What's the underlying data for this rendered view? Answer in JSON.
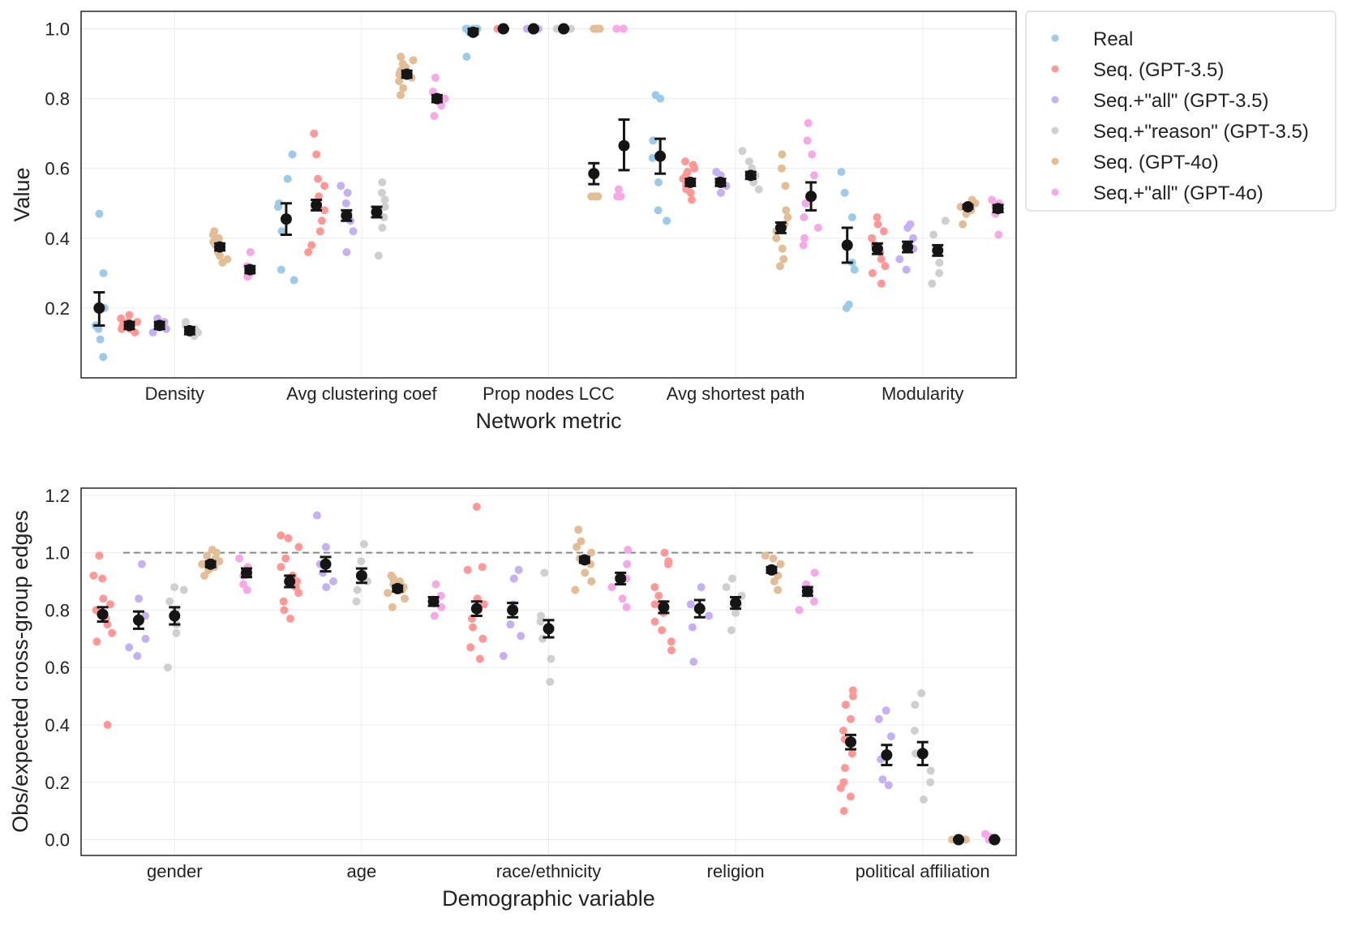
{
  "colors": {
    "Real": "#9ecae9",
    "Seq. (GPT-3.5)": "#ff9896",
    "Seq.+\"all\" (GPT-3.5)": "#c5b0f2",
    "Seq.+\"reason\" (GPT-3.5)": "#cfcfcf",
    "Seq. (GPT-4o)": "#e2bd95",
    "Seq.+\"all\" (GPT-4o)": "#f7a8e6",
    "mean_marker": "#151515",
    "reference_line": "#888888"
  },
  "legend": {
    "location": "outside upper right",
    "entries": [
      "Real",
      "Seq. (GPT-3.5)",
      "Seq.+\"all\" (GPT-3.5)",
      "Seq.+\"reason\" (GPT-3.5)",
      "Seq. (GPT-4o)",
      "Seq.+\"all\" (GPT-4o)"
    ]
  },
  "chart_data": [
    {
      "type": "scatter",
      "kind": "strip plot with mean and 95% CI error bars",
      "xlabel": "Network metric",
      "ylabel": "Value",
      "categories": [
        "Density",
        "Avg clustering coef",
        "Prop nodes LCC",
        "Avg shortest path",
        "Modularity"
      ],
      "yticks": [
        "0.2",
        "0.4",
        "0.6",
        "0.8",
        "1.0"
      ],
      "ylim": [
        0.0,
        1.05
      ],
      "grid": true,
      "series": [
        {
          "name": "Real",
          "means": [
            0.2,
            0.455,
            0.99,
            0.635,
            0.38
          ],
          "ci": [
            [
              0.15,
              0.245
            ],
            [
              0.41,
              0.5
            ],
            [
              0.985,
              1.0
            ],
            [
              0.585,
              0.685
            ],
            [
              0.33,
              0.43
            ]
          ],
          "points": [
            [
              0.06,
              0.11,
              0.14,
              0.15,
              0.2,
              0.3,
              0.47
            ],
            [
              0.28,
              0.31,
              0.42,
              0.49,
              0.5,
              0.57,
              0.64
            ],
            [
              0.92,
              0.99,
              1.0,
              1.0,
              1.0,
              1.0,
              1.0
            ],
            [
              0.45,
              0.48,
              0.56,
              0.63,
              0.68,
              0.8,
              0.81
            ],
            [
              0.2,
              0.21,
              0.31,
              0.33,
              0.46,
              0.53,
              0.59
            ]
          ]
        },
        {
          "name": "Seq. (GPT-3.5)",
          "means": [
            0.15,
            0.495,
            1.0,
            0.56,
            0.37
          ],
          "ci": [
            [
              0.14,
              0.16
            ],
            [
              0.48,
              0.51
            ],
            [
              1.0,
              1.0
            ],
            [
              0.55,
              0.57
            ],
            [
              0.355,
              0.385
            ]
          ],
          "points": [
            [
              0.13,
              0.14,
              0.14,
              0.15,
              0.15,
              0.16,
              0.16,
              0.17,
              0.18
            ],
            [
              0.36,
              0.38,
              0.42,
              0.45,
              0.48,
              0.5,
              0.52,
              0.55,
              0.57,
              0.64,
              0.7
            ],
            [
              1.0,
              1.0,
              1.0,
              1.0,
              1.0,
              1.0
            ],
            [
              0.51,
              0.53,
              0.54,
              0.55,
              0.56,
              0.57,
              0.58,
              0.59,
              0.6,
              0.61,
              0.62
            ],
            [
              0.27,
              0.3,
              0.32,
              0.34,
              0.36,
              0.38,
              0.4,
              0.42,
              0.44,
              0.46
            ]
          ]
        },
        {
          "name": "Seq.+\"all\" (GPT-3.5)",
          "means": [
            0.15,
            0.465,
            1.0,
            0.56,
            0.375
          ],
          "ci": [
            [
              0.14,
              0.16
            ],
            [
              0.45,
              0.48
            ],
            [
              1.0,
              1.0
            ],
            [
              0.55,
              0.57
            ],
            [
              0.36,
              0.39
            ]
          ],
          "points": [
            [
              0.13,
              0.14,
              0.15,
              0.16,
              0.17
            ],
            [
              0.36,
              0.42,
              0.45,
              0.47,
              0.5,
              0.53,
              0.55
            ],
            [
              1.0,
              1.0,
              1.0,
              1.0
            ],
            [
              0.53,
              0.55,
              0.56,
              0.58,
              0.59
            ],
            [
              0.31,
              0.34,
              0.37,
              0.4,
              0.43,
              0.44
            ]
          ]
        },
        {
          "name": "Seq.+\"reason\" (GPT-3.5)",
          "means": [
            0.135,
            0.475,
            1.0,
            0.58,
            0.365
          ],
          "ci": [
            [
              0.125,
              0.145
            ],
            [
              0.46,
              0.49
            ],
            [
              1.0,
              1.0
            ],
            [
              0.57,
              0.59
            ],
            [
              0.35,
              0.38
            ]
          ],
          "points": [
            [
              0.12,
              0.13,
              0.14,
              0.15,
              0.16
            ],
            [
              0.35,
              0.43,
              0.46,
              0.49,
              0.51,
              0.53,
              0.56
            ],
            [
              1.0,
              1.0,
              1.0,
              1.0
            ],
            [
              0.54,
              0.56,
              0.58,
              0.6,
              0.62,
              0.65
            ],
            [
              0.27,
              0.3,
              0.33,
              0.37,
              0.41,
              0.45
            ]
          ]
        },
        {
          "name": "Seq. (GPT-4o)",
          "means": [
            0.375,
            0.87,
            0.585,
            0.43,
            0.49
          ],
          "ci": [
            [
              0.365,
              0.385
            ],
            [
              0.86,
              0.88
            ],
            [
              0.555,
              0.615
            ],
            [
              0.415,
              0.445
            ],
            [
              0.485,
              0.495
            ]
          ],
          "points": [
            [
              0.33,
              0.34,
              0.35,
              0.36,
              0.37,
              0.38,
              0.39,
              0.4,
              0.41,
              0.42
            ],
            [
              0.81,
              0.83,
              0.85,
              0.86,
              0.87,
              0.88,
              0.89,
              0.9,
              0.91,
              0.92
            ],
            [
              0.52,
              0.52,
              0.52,
              0.52,
              1.0,
              1.0,
              1.0,
              1.0
            ],
            [
              0.32,
              0.34,
              0.37,
              0.4,
              0.42,
              0.44,
              0.46,
              0.48,
              0.55,
              0.6,
              0.64
            ],
            [
              0.44,
              0.47,
              0.48,
              0.49,
              0.5,
              0.51
            ]
          ]
        },
        {
          "name": "Seq.+\"all\" (GPT-4o)",
          "means": [
            0.31,
            0.8,
            0.665,
            0.52,
            0.485
          ],
          "ci": [
            [
              0.3,
              0.32
            ],
            [
              0.79,
              0.81
            ],
            [
              0.595,
              0.74
            ],
            [
              0.48,
              0.56
            ],
            [
              0.475,
              0.495
            ]
          ],
          "points": [
            [
              0.29,
              0.3,
              0.31,
              0.32,
              0.36
            ],
            [
              0.75,
              0.78,
              0.8,
              0.82,
              0.86
            ],
            [
              0.52,
              0.52,
              0.54,
              1.0,
              1.0,
              1.0
            ],
            [
              0.38,
              0.4,
              0.43,
              0.46,
              0.5,
              0.58,
              0.64,
              0.68,
              0.73
            ],
            [
              0.41,
              0.47,
              0.49,
              0.5,
              0.51
            ]
          ]
        }
      ]
    },
    {
      "type": "scatter",
      "kind": "strip plot with mean and 95% CI error bars",
      "xlabel": "Demographic variable",
      "ylabel": "Obs/expected cross-group edges",
      "categories": [
        "gender",
        "age",
        "race/ethnicity",
        "religion",
        "political affiliation"
      ],
      "yticks": [
        "0.0",
        "0.2",
        "0.4",
        "0.6",
        "0.8",
        "1.0",
        "1.2"
      ],
      "ylim": [
        -0.055,
        1.225
      ],
      "reference_line": 1.0,
      "grid": true,
      "series": [
        {
          "name": "Seq. (GPT-3.5)",
          "means": [
            0.785,
            0.9,
            0.805,
            0.81,
            0.34
          ],
          "ci": [
            [
              0.76,
              0.81
            ],
            [
              0.88,
              0.92
            ],
            [
              0.78,
              0.83
            ],
            [
              0.79,
              0.83
            ],
            [
              0.315,
              0.365
            ]
          ],
          "points": [
            [
              0.4,
              0.69,
              0.72,
              0.75,
              0.77,
              0.79,
              0.8,
              0.82,
              0.84,
              0.91,
              0.92,
              0.99
            ],
            [
              0.77,
              0.8,
              0.83,
              0.86,
              0.88,
              0.9,
              0.92,
              0.95,
              0.98,
              1.02,
              1.05,
              1.06
            ],
            [
              0.63,
              0.67,
              0.7,
              0.74,
              0.77,
              0.8,
              0.82,
              0.84,
              0.94,
              0.95,
              1.16
            ],
            [
              0.66,
              0.69,
              0.73,
              0.76,
              0.79,
              0.82,
              0.85,
              0.88,
              0.96,
              0.97,
              1.0
            ],
            [
              0.1,
              0.15,
              0.18,
              0.2,
              0.25,
              0.3,
              0.35,
              0.38,
              0.42,
              0.47,
              0.5,
              0.52
            ]
          ]
        },
        {
          "name": "Seq.+\"all\" (GPT-3.5)",
          "means": [
            0.765,
            0.96,
            0.8,
            0.805,
            0.295
          ],
          "ci": [
            [
              0.735,
              0.795
            ],
            [
              0.935,
              0.985
            ],
            [
              0.775,
              0.825
            ],
            [
              0.775,
              0.835
            ],
            [
              0.26,
              0.33
            ]
          ],
          "points": [
            [
              0.64,
              0.67,
              0.7,
              0.78,
              0.84,
              0.96
            ],
            [
              0.88,
              0.9,
              0.93,
              0.96,
              1.02,
              1.13
            ],
            [
              0.64,
              0.71,
              0.75,
              0.82,
              0.91,
              0.94
            ],
            [
              0.62,
              0.74,
              0.78,
              0.82,
              0.88
            ],
            [
              0.19,
              0.21,
              0.28,
              0.36,
              0.42,
              0.45
            ]
          ]
        },
        {
          "name": "Seq.+\"reason\" (GPT-3.5)",
          "means": [
            0.78,
            0.92,
            0.735,
            0.825,
            0.3
          ],
          "ci": [
            [
              0.75,
              0.81
            ],
            [
              0.895,
              0.945
            ],
            [
              0.705,
              0.765
            ],
            [
              0.805,
              0.845
            ],
            [
              0.26,
              0.34
            ]
          ],
          "points": [
            [
              0.6,
              0.72,
              0.75,
              0.8,
              0.83,
              0.87,
              0.88
            ],
            [
              0.83,
              0.87,
              0.9,
              0.93,
              0.97,
              1.03
            ],
            [
              0.55,
              0.63,
              0.7,
              0.76,
              0.78,
              0.93
            ],
            [
              0.73,
              0.79,
              0.82,
              0.85,
              0.88,
              0.91
            ],
            [
              0.14,
              0.2,
              0.24,
              0.3,
              0.38,
              0.47,
              0.51
            ]
          ]
        },
        {
          "name": "Seq. (GPT-4o)",
          "means": [
            0.96,
            0.875,
            0.975,
            0.94,
            0.0
          ],
          "ci": [
            [
              0.95,
              0.97
            ],
            [
              0.865,
              0.885
            ],
            [
              0.965,
              0.985
            ],
            [
              0.93,
              0.95
            ],
            [
              0.0,
              0.0
            ]
          ],
          "points": [
            [
              0.92,
              0.94,
              0.95,
              0.96,
              0.97,
              0.98,
              0.99,
              1.0,
              1.01
            ],
            [
              0.81,
              0.84,
              0.86,
              0.87,
              0.88,
              0.89,
              0.9,
              0.91,
              0.92
            ],
            [
              0.87,
              0.9,
              0.93,
              0.96,
              0.98,
              1.0,
              1.02,
              1.04,
              1.08
            ],
            [
              0.87,
              0.9,
              0.92,
              0.94,
              0.96,
              0.98,
              0.99
            ],
            [
              0.0,
              0.0,
              0.0,
              0.0,
              0.0
            ]
          ]
        },
        {
          "name": "Seq.+\"all\" (GPT-4o)",
          "means": [
            0.93,
            0.83,
            0.91,
            0.865,
            0.0
          ],
          "ci": [
            [
              0.915,
              0.945
            ],
            [
              0.815,
              0.845
            ],
            [
              0.89,
              0.93
            ],
            [
              0.85,
              0.88
            ],
            [
              0.0,
              0.0
            ]
          ],
          "points": [
            [
              0.87,
              0.89,
              0.92,
              0.95,
              0.98
            ],
            [
              0.78,
              0.81,
              0.83,
              0.85,
              0.89
            ],
            [
              0.81,
              0.84,
              0.88,
              0.91,
              0.96,
              1.01
            ],
            [
              0.8,
              0.83,
              0.86,
              0.89,
              0.93
            ],
            [
              0.0,
              0.01,
              0.02
            ]
          ]
        }
      ]
    }
  ]
}
